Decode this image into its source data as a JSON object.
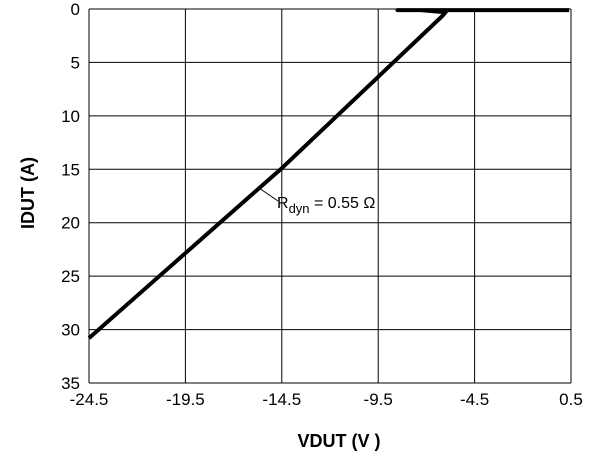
{
  "chart_data": {
    "type": "line",
    "title": "",
    "xlabel": "VDUT (V )",
    "ylabel": "IDUT (A)",
    "xlim": [
      -24.5,
      0.5
    ],
    "ylim": [
      35,
      0
    ],
    "y_inverted": true,
    "grid": true,
    "xticks": [
      "-24.5",
      "-19.5",
      "-14.5",
      "-9.5",
      "-4.5",
      "0.5"
    ],
    "yticks": [
      "0",
      "5",
      "10",
      "15",
      "20",
      "25",
      "30",
      "35"
    ],
    "series": [
      {
        "name": "",
        "color": "#000000",
        "x": [
          -24.5,
          -14.5,
          -6.2,
          -6.0,
          -7.3,
          -8.5,
          0.4
        ],
        "y": [
          30.8,
          14.9,
          0.7,
          0.3,
          0.1,
          0.1,
          0.1
        ]
      }
    ],
    "annotation": {
      "symbol": "R",
      "subscript": "dyn",
      "text": " = 0.55 Ω",
      "at_x": -15.6,
      "at_y": 16.8
    }
  }
}
